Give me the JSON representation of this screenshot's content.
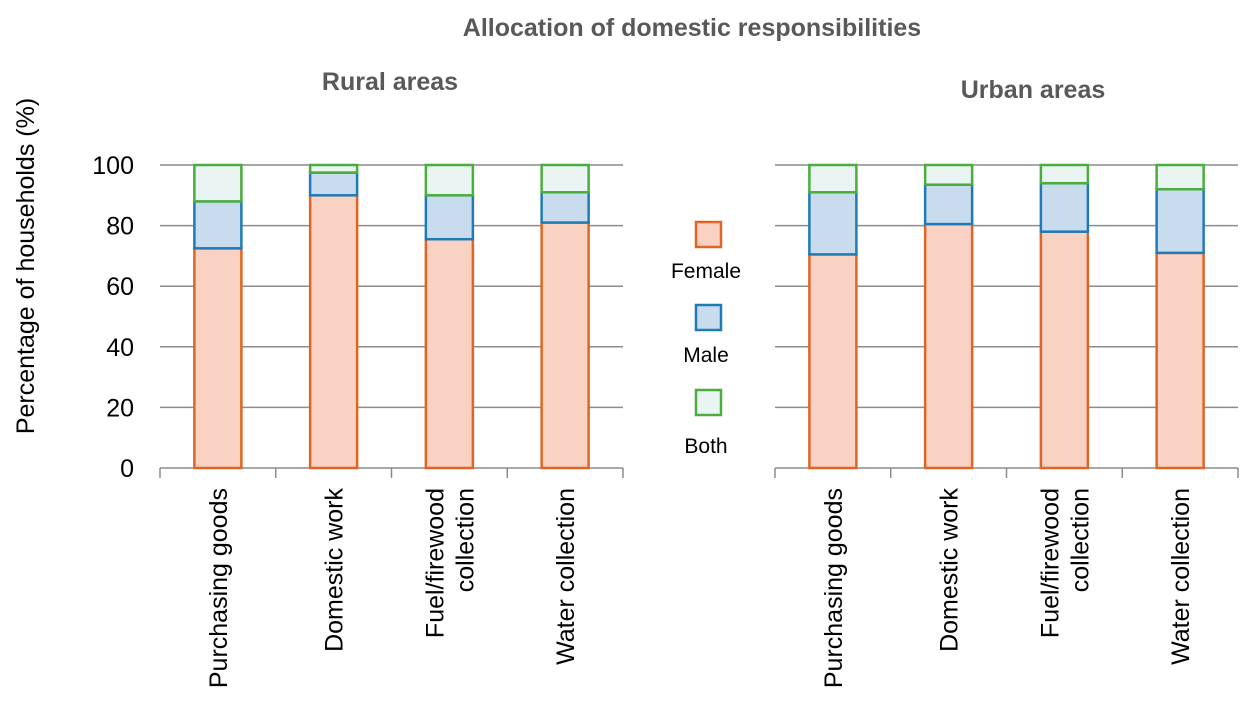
{
  "page": {
    "title": "Allocation of domestic responsibilities",
    "ylabel": "Percentage of households (%)"
  },
  "legend": {
    "placement": "center",
    "items": [
      {
        "name": "Female",
        "fill": "#f9d2c4",
        "stroke": "#e26425"
      },
      {
        "name": "Male",
        "fill": "#c9dcee",
        "stroke": "#1f7bb8"
      },
      {
        "name": "Both",
        "fill": "#eaf5f3",
        "stroke": "#4aad3c"
      }
    ]
  },
  "colors": {
    "grid": "#8c8c8c",
    "title": "#595959",
    "text": "#000000"
  },
  "chart_data": [
    {
      "type": "bar",
      "stacked": true,
      "title": "Rural areas",
      "ylabel": "Percentage of households (%)",
      "ylim": [
        0,
        100
      ],
      "yticks": [
        "0",
        "20",
        "40",
        "60",
        "80",
        "100"
      ],
      "grid": true,
      "categories": [
        [
          "Purchasing goods"
        ],
        [
          "Domestic work"
        ],
        [
          "Fuel/firewood",
          "collection"
        ],
        [
          "Water collection"
        ]
      ],
      "series": [
        {
          "name": "Female",
          "values": [
            72.5,
            90,
            75.5,
            81
          ]
        },
        {
          "name": "Male",
          "values": [
            15.5,
            7.5,
            14.5,
            10
          ]
        },
        {
          "name": "Both",
          "values": [
            12,
            2.5,
            10,
            9
          ]
        }
      ]
    },
    {
      "type": "bar",
      "stacked": true,
      "title": "Urban areas",
      "ylim": [
        0,
        100
      ],
      "grid": true,
      "categories": [
        [
          "Purchasing goods"
        ],
        [
          "Domestic work"
        ],
        [
          "Fuel/firewood",
          "collection"
        ],
        [
          "Water collection"
        ]
      ],
      "series": [
        {
          "name": "Female",
          "values": [
            70.5,
            80.5,
            78,
            71
          ]
        },
        {
          "name": "Male",
          "values": [
            20.5,
            13,
            16,
            21
          ]
        },
        {
          "name": "Both",
          "values": [
            9,
            6.5,
            6,
            8
          ]
        }
      ]
    }
  ]
}
